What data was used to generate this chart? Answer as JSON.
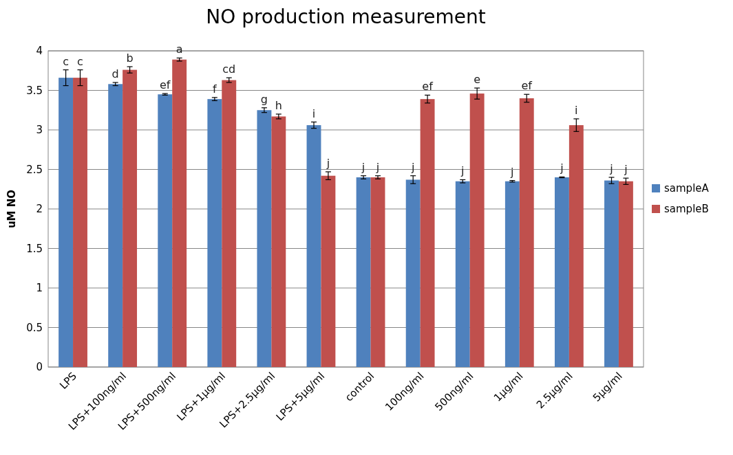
{
  "chart_data": {
    "type": "bar",
    "title": "NO production measurement",
    "ylabel": "uM NO",
    "categories": [
      "LPS",
      "LPS+100ng/ml",
      "LPS+500ng/ml",
      "LPS+1μg/ml",
      "LPS+2.5μg/ml",
      "LPS+5μg/ml",
      "control",
      "100ng/ml",
      "500ng/ml",
      "1μg/ml",
      "2.5μg/ml",
      "5μg/ml"
    ],
    "series": [
      {
        "name": "sampleA",
        "color": "#4f81bd",
        "values": [
          3.66,
          3.58,
          3.45,
          3.39,
          3.25,
          3.06,
          2.4,
          2.37,
          2.35,
          2.35,
          2.4,
          2.36
        ],
        "errors": [
          0.1,
          0.02,
          0.01,
          0.02,
          0.03,
          0.04,
          0.02,
          0.05,
          0.02,
          0.01,
          0.005,
          0.04
        ],
        "value_labels": [
          "c",
          "d",
          "ef",
          "f",
          "g",
          "i",
          "j",
          "j",
          "j",
          "j",
          "j",
          "j"
        ]
      },
      {
        "name": "sampleB",
        "color": "#c0504d",
        "values": [
          3.66,
          3.76,
          3.89,
          3.63,
          3.17,
          2.42,
          2.4,
          3.39,
          3.46,
          3.4,
          3.06,
          2.35
        ],
        "errors": [
          0.1,
          0.04,
          0.02,
          0.03,
          0.03,
          0.05,
          0.02,
          0.05,
          0.07,
          0.05,
          0.08,
          0.04
        ],
        "value_labels": [
          "c",
          "b",
          "a",
          "cd",
          "h",
          "j",
          "j",
          "ef",
          "e",
          "ef",
          "i",
          "j"
        ]
      }
    ],
    "ylim": [
      0,
      4
    ],
    "yticks": [
      0,
      0.5,
      1,
      1.5,
      2,
      2.5,
      3,
      3.5,
      4
    ],
    "grid": "y",
    "legend": "right"
  }
}
